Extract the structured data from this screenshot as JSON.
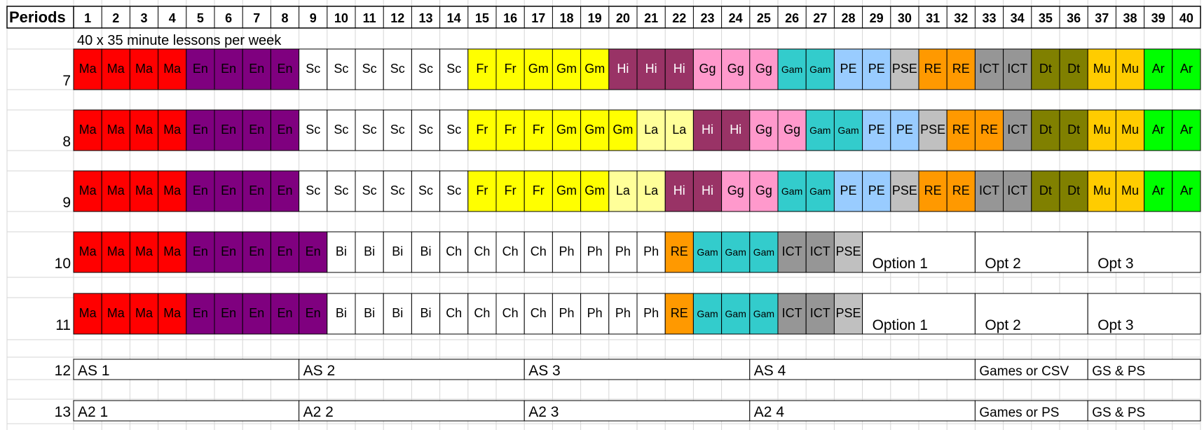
{
  "header": {
    "label": "Periods",
    "periods": [
      "1",
      "2",
      "3",
      "4",
      "5",
      "6",
      "7",
      "8",
      "9",
      "10",
      "11",
      "12",
      "13",
      "14",
      "15",
      "16",
      "17",
      "18",
      "19",
      "20",
      "21",
      "22",
      "23",
      "24",
      "25",
      "26",
      "27",
      "28",
      "29",
      "30",
      "31",
      "32",
      "33",
      "34",
      "35",
      "36",
      "37",
      "38",
      "39",
      "40"
    ]
  },
  "subtitle": "40 x 35 minute lessons per week",
  "subjects": {
    "Ma": {
      "fill": "#ff0000",
      "text": "#000000"
    },
    "En": {
      "fill": "#7f007f",
      "text": "#000000"
    },
    "Sc": {
      "fill": "#ffffff",
      "text": "#000000"
    },
    "Fr": {
      "fill": "#ffff00",
      "text": "#000000"
    },
    "Gm": {
      "fill": "#ffff00",
      "text": "#000000"
    },
    "La": {
      "fill": "#ffff99",
      "text": "#000000"
    },
    "Hi": {
      "fill": "#993366",
      "text": "#ffffff"
    },
    "Gg": {
      "fill": "#ff99cc",
      "text": "#000000"
    },
    "Gam": {
      "fill": "#33cccc",
      "text": "#000000"
    },
    "PE": {
      "fill": "#99ccff",
      "text": "#000000"
    },
    "PSE": {
      "fill": "#c0c0c0",
      "text": "#000000"
    },
    "RE": {
      "fill": "#ff9900",
      "text": "#000000"
    },
    "ICT": {
      "fill": "#969696",
      "text": "#000000"
    },
    "Dt": {
      "fill": "#808000",
      "text": "#000000"
    },
    "Mu": {
      "fill": "#ffcc00",
      "text": "#000000"
    },
    "Ar": {
      "fill": "#00ff00",
      "text": "#000000"
    },
    "Bi": {
      "fill": "#ffffff",
      "text": "#000000"
    },
    "Ch": {
      "fill": "#ffffff",
      "text": "#000000"
    },
    "Ph": {
      "fill": "#ffffff",
      "text": "#000000"
    }
  },
  "years": [
    {
      "year": "7",
      "cells": [
        "Ma",
        "Ma",
        "Ma",
        "Ma",
        "En",
        "En",
        "En",
        "En",
        "Sc",
        "Sc",
        "Sc",
        "Sc",
        "Sc",
        "Sc",
        "Fr",
        "Fr",
        "Gm",
        "Gm",
        "Gm",
        "Hi",
        "Hi",
        "Hi",
        "Gg",
        "Gg",
        "Gg",
        "Gam",
        "Gam",
        "PE",
        "PE",
        "PSE",
        "RE",
        "RE",
        "ICT",
        "ICT",
        "Dt",
        "Dt",
        "Mu",
        "Mu",
        "Ar",
        "Ar"
      ],
      "options": []
    },
    {
      "year": "8",
      "cells": [
        "Ma",
        "Ma",
        "Ma",
        "Ma",
        "En",
        "En",
        "En",
        "En",
        "Sc",
        "Sc",
        "Sc",
        "Sc",
        "Sc",
        "Sc",
        "Fr",
        "Fr",
        "Fr",
        "Gm",
        "Gm",
        "Gm",
        "La",
        "La",
        "Hi",
        "Hi",
        "Gg",
        "Gg",
        "Gam",
        "Gam",
        "PE",
        "PE",
        "PSE",
        "RE",
        "RE",
        "ICT",
        "Dt",
        "Dt",
        "Mu",
        "Mu",
        "Ar",
        "Ar"
      ],
      "options": []
    },
    {
      "year": "9",
      "cells": [
        "Ma",
        "Ma",
        "Ma",
        "Ma",
        "En",
        "En",
        "En",
        "En",
        "Sc",
        "Sc",
        "Sc",
        "Sc",
        "Sc",
        "Sc",
        "Fr",
        "Fr",
        "Fr",
        "Gm",
        "Gm",
        "La",
        "La",
        "Hi",
        "Hi",
        "Gg",
        "Gg",
        "Gam",
        "Gam",
        "PE",
        "PE",
        "PSE",
        "RE",
        "RE",
        "ICT",
        "ICT",
        "Dt",
        "Dt",
        "Mu",
        "Mu",
        "Ar",
        "Ar"
      ],
      "options": []
    },
    {
      "year": "10",
      "cells": [
        "Ma",
        "Ma",
        "Ma",
        "Ma",
        "En",
        "En",
        "En",
        "En",
        "En",
        "Bi",
        "Bi",
        "Bi",
        "Bi",
        "Ch",
        "Ch",
        "Ch",
        "Ch",
        "Ph",
        "Ph",
        "Ph",
        "Ph",
        "RE",
        "Gam",
        "Gam",
        "Gam",
        "ICT",
        "ICT",
        "PSE"
      ],
      "options": [
        {
          "label": "Option 1",
          "span": 4
        },
        {
          "label": "Opt 2",
          "span": 4
        },
        {
          "label": "Opt 3",
          "span": 4
        }
      ]
    },
    {
      "year": "11",
      "cells": [
        "Ma",
        "Ma",
        "Ma",
        "Ma",
        "En",
        "En",
        "En",
        "En",
        "En",
        "Bi",
        "Bi",
        "Bi",
        "Bi",
        "Ch",
        "Ch",
        "Ch",
        "Ch",
        "Ph",
        "Ph",
        "Ph",
        "Ph",
        "RE",
        "Gam",
        "Gam",
        "Gam",
        "ICT",
        "ICT",
        "PSE"
      ],
      "options": [
        {
          "label": "Option 1",
          "span": 4
        },
        {
          "label": "Opt 2",
          "span": 4
        },
        {
          "label": "Opt 3",
          "span": 4
        }
      ]
    }
  ],
  "sixth_form": [
    {
      "year": "12",
      "blocks": [
        {
          "label": "AS 1",
          "span": 8
        },
        {
          "label": "AS 2",
          "span": 8
        },
        {
          "label": "AS 3",
          "span": 8
        },
        {
          "label": "AS 4",
          "span": 8
        },
        {
          "label": "Games or CSV",
          "span": 4
        },
        {
          "label": "GS & PS",
          "span": 4
        }
      ]
    },
    {
      "year": "13",
      "blocks": [
        {
          "label": "A2 1",
          "span": 8
        },
        {
          "label": "A2 2",
          "span": 8
        },
        {
          "label": "A2 3",
          "span": 8
        },
        {
          "label": "A2 4",
          "span": 8
        },
        {
          "label": "Games or PS",
          "span": 4
        },
        {
          "label": "GS & PS",
          "span": 4
        }
      ]
    }
  ]
}
